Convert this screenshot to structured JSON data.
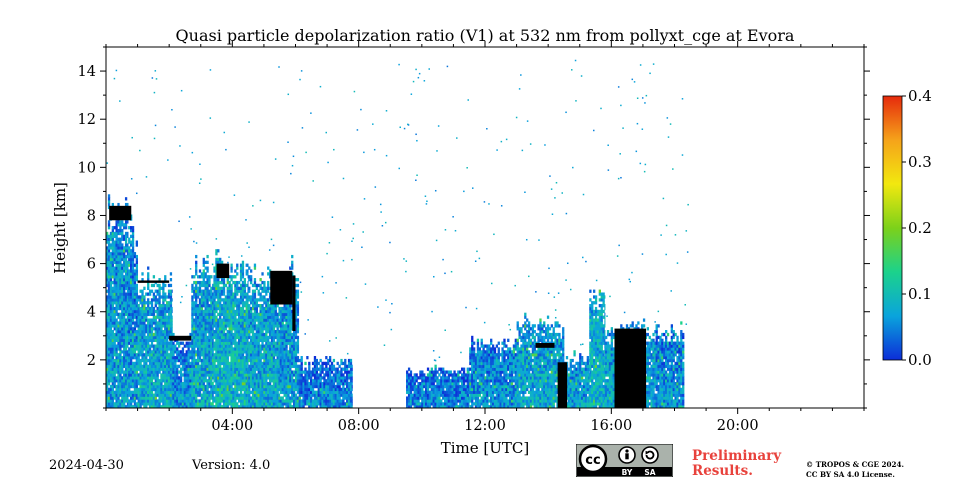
{
  "chart_data": {
    "type": "heatmap",
    "title": "Quasi particle depolarization ratio (V1) at 532 nm from pollyxt_cge at Evora",
    "xlabel": "Time [UTC]",
    "ylabel": "Height [km]",
    "xlim_hours": [
      0,
      24
    ],
    "ylim_km": [
      0,
      15
    ],
    "x_ticks": [
      {
        "hour": 4,
        "label": "04:00"
      },
      {
        "hour": 8,
        "label": "08:00"
      },
      {
        "hour": 12,
        "label": "12:00"
      },
      {
        "hour": 16,
        "label": "16:00"
      },
      {
        "hour": 20,
        "label": "20:00"
      }
    ],
    "y_ticks": [
      {
        "value": 2,
        "label": "2"
      },
      {
        "value": 4,
        "label": "4"
      },
      {
        "value": 6,
        "label": "6"
      },
      {
        "value": 8,
        "label": "8"
      },
      {
        "value": 10,
        "label": "10"
      },
      {
        "value": 12,
        "label": "12"
      },
      {
        "value": 14,
        "label": "14"
      }
    ],
    "colorbar": {
      "min": 0.0,
      "max": 0.4,
      "ticks": [
        {
          "value": 0.0,
          "label": "0.0"
        },
        {
          "value": 0.1,
          "label": "0.1"
        },
        {
          "value": 0.2,
          "label": "0.2"
        },
        {
          "value": 0.3,
          "label": "0.3"
        },
        {
          "value": 0.4,
          "label": "0.4"
        }
      ],
      "colors": [
        "#0c2dd8",
        "#0aa4dc",
        "#1bd28c",
        "#7cd11a",
        "#f2e80f",
        "#f5a31a",
        "#e62a0c"
      ]
    },
    "columns_approx": [
      {
        "t0": 0.0,
        "t1": 0.7,
        "top_km": 8.4,
        "value": 0.07
      },
      {
        "t0": 0.7,
        "t1": 1.0,
        "top_km": 7.6,
        "value": 0.06
      },
      {
        "t0": 1.0,
        "t1": 2.1,
        "top_km": 5.3,
        "value": 0.08
      },
      {
        "t0": 2.1,
        "t1": 2.7,
        "top_km": 2.9,
        "value": 0.06
      },
      {
        "t0": 2.7,
        "t1": 3.4,
        "top_km": 5.9,
        "value": 0.08
      },
      {
        "t0": 3.4,
        "t1": 4.5,
        "top_km": 6.0,
        "value": 0.09
      },
      {
        "t0": 4.5,
        "t1": 5.5,
        "top_km": 5.5,
        "value": 0.08
      },
      {
        "t0": 5.5,
        "t1": 6.1,
        "top_km": 5.7,
        "value": 0.07
      },
      {
        "t0": 6.1,
        "t1": 7.8,
        "top_km": 2.0,
        "value": 0.05
      },
      {
        "t0": 9.5,
        "t1": 11.5,
        "top_km": 1.6,
        "value": 0.05
      },
      {
        "t0": 11.5,
        "t1": 13.0,
        "top_km": 2.7,
        "value": 0.06
      },
      {
        "t0": 13.0,
        "t1": 14.5,
        "top_km": 3.6,
        "value": 0.08
      },
      {
        "t0": 14.5,
        "t1": 15.3,
        "top_km": 2.1,
        "value": 0.07
      },
      {
        "t0": 15.3,
        "t1": 15.8,
        "top_km": 4.5,
        "value": 0.09
      },
      {
        "t0": 15.8,
        "t1": 17.4,
        "top_km": 3.3,
        "value": 0.08
      },
      {
        "t0": 17.4,
        "t1": 18.3,
        "top_km": 3.2,
        "value": 0.06
      }
    ],
    "black_features": [
      {
        "t0": 0.1,
        "t1": 0.8,
        "bottom_km": 7.8,
        "top_km": 8.4
      },
      {
        "t0": 1.0,
        "t1": 2.0,
        "bottom_km": 5.2,
        "top_km": 5.3
      },
      {
        "t0": 2.0,
        "t1": 2.7,
        "bottom_km": 2.8,
        "top_km": 3.0
      },
      {
        "t0": 3.5,
        "t1": 3.9,
        "bottom_km": 5.4,
        "top_km": 6.0
      },
      {
        "t0": 5.2,
        "t1": 5.9,
        "bottom_km": 4.3,
        "top_km": 5.7
      },
      {
        "t0": 5.9,
        "t1": 6.0,
        "bottom_km": 3.2,
        "top_km": 5.5
      },
      {
        "t0": 13.6,
        "t1": 14.2,
        "bottom_km": 2.5,
        "top_km": 2.7
      },
      {
        "t0": 14.3,
        "t1": 14.6,
        "bottom_km": 0.0,
        "top_km": 1.9
      },
      {
        "t0": 16.1,
        "t1": 17.1,
        "bottom_km": 0.0,
        "top_km": 3.3
      }
    ]
  },
  "footer": {
    "date": "2024-04-30",
    "version": "Version: 4.0",
    "preliminary_line1": "Preliminary",
    "preliminary_line2": "Results.",
    "license_line1": "© TROPOS & CGE 2024.",
    "license_line2": "CC BY SA 4.0 License.",
    "cc_badge": {
      "cc": "cc",
      "by": "BY",
      "sa": "SA"
    }
  }
}
